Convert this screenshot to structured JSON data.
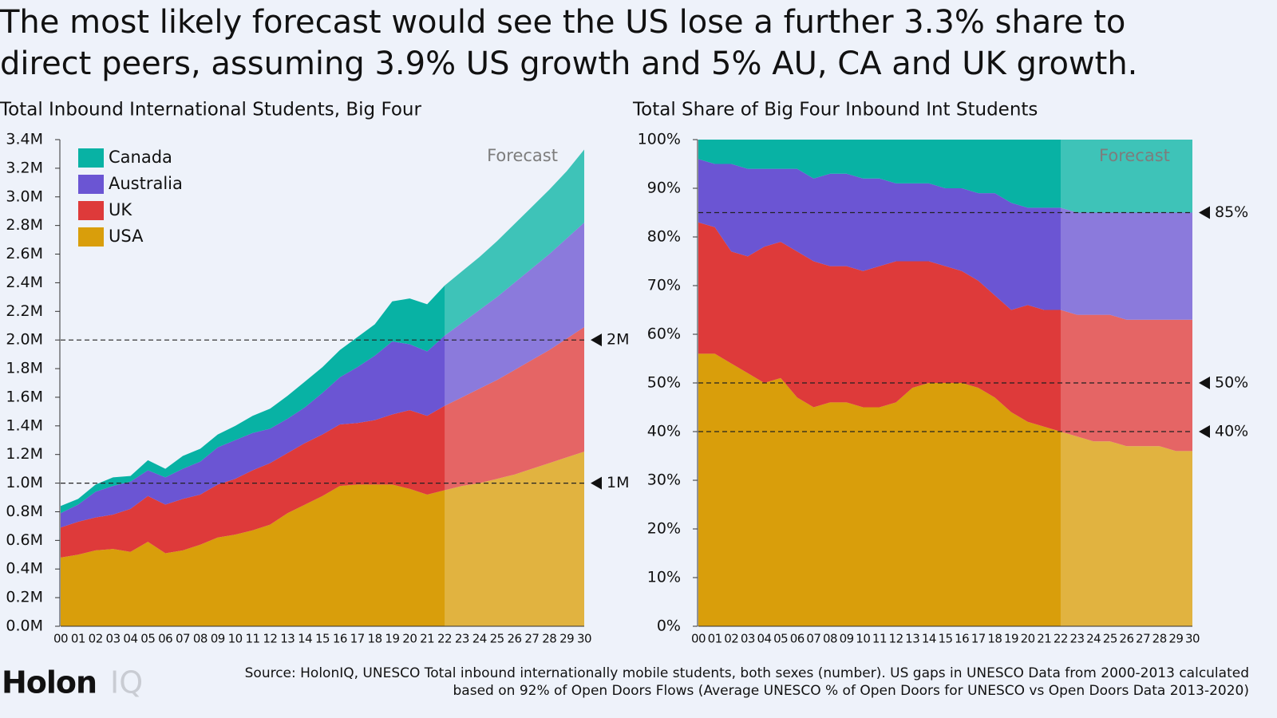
{
  "title": [
    "The most likely forecast would see the US lose a further 3.3% share to",
    "direct peers, assuming 3.9% US growth and 5% AU, CA and UK growth."
  ],
  "source": [
    "Source: HolonIQ, UNESCO Total inbound internationally mobile students, both sexes (number). US gaps in UNESCO Data from 2000-2013 calculated",
    "based on 92% of Open Doors Flows (Average UNESCO % of Open Doors for UNESCO vs Open Doors Data 2013-2020)"
  ],
  "logo": [
    "Holon",
    "IQ"
  ],
  "chart_data": [
    {
      "type": "stacked_area",
      "title": "Total Inbound International Students, Big Four",
      "categories": [
        "00",
        "01",
        "02",
        "03",
        "04",
        "05",
        "06",
        "07",
        "08",
        "09",
        "10",
        "11",
        "12",
        "13",
        "14",
        "15",
        "16",
        "17",
        "18",
        "19",
        "20",
        "21",
        "22",
        "23",
        "24",
        "25",
        "26",
        "27",
        "28",
        "29",
        "30"
      ],
      "series": [
        {
          "name": "USA",
          "color": "#d99e0b",
          "values": [
            0.48,
            0.5,
            0.53,
            0.54,
            0.52,
            0.59,
            0.51,
            0.53,
            0.57,
            0.62,
            0.64,
            0.67,
            0.71,
            0.79,
            0.85,
            0.91,
            0.98,
            0.99,
            0.99,
            0.99,
            0.96,
            0.92,
            0.95,
            0.98,
            1.0,
            1.03,
            1.06,
            1.1,
            1.14,
            1.18,
            1.22
          ]
        },
        {
          "name": "UK",
          "color": "#de3a3a",
          "values": [
            0.21,
            0.23,
            0.23,
            0.24,
            0.3,
            0.32,
            0.34,
            0.36,
            0.35,
            0.37,
            0.39,
            0.42,
            0.43,
            0.42,
            0.43,
            0.43,
            0.43,
            0.43,
            0.45,
            0.49,
            0.55,
            0.55,
            0.59,
            0.62,
            0.66,
            0.69,
            0.73,
            0.76,
            0.79,
            0.83,
            0.87
          ]
        },
        {
          "name": "Australia",
          "color": "#6b55d3",
          "values": [
            0.1,
            0.12,
            0.18,
            0.2,
            0.19,
            0.18,
            0.19,
            0.21,
            0.23,
            0.26,
            0.27,
            0.26,
            0.24,
            0.24,
            0.25,
            0.29,
            0.33,
            0.39,
            0.45,
            0.51,
            0.46,
            0.45,
            0.49,
            0.52,
            0.55,
            0.58,
            0.61,
            0.64,
            0.67,
            0.7,
            0.73
          ]
        },
        {
          "name": "Canada",
          "color": "#08b2a4",
          "values": [
            0.05,
            0.04,
            0.05,
            0.06,
            0.04,
            0.07,
            0.06,
            0.09,
            0.09,
            0.09,
            0.1,
            0.12,
            0.14,
            0.16,
            0.18,
            0.18,
            0.19,
            0.21,
            0.22,
            0.28,
            0.32,
            0.33,
            0.35,
            0.36,
            0.37,
            0.39,
            0.41,
            0.43,
            0.45,
            0.47,
            0.51
          ]
        }
      ],
      "ylim": [
        0,
        3.4
      ],
      "yticks": [
        {
          "value": 0,
          "label": "0.0M"
        },
        {
          "value": 0.2,
          "label": "0.2M"
        },
        {
          "value": 0.4,
          "label": "0.4M"
        },
        {
          "value": 0.6,
          "label": "0.6M"
        },
        {
          "value": 0.8,
          "label": "0.8M"
        },
        {
          "value": 1,
          "label": "1.0M"
        },
        {
          "value": 1.2,
          "label": "1.2M"
        },
        {
          "value": 1.4,
          "label": "1.4M"
        },
        {
          "value": 1.6,
          "label": "1.6M"
        },
        {
          "value": 1.8,
          "label": "1.8M"
        },
        {
          "value": 2,
          "label": "2.0M"
        },
        {
          "value": 2.2,
          "label": "2.2M"
        },
        {
          "value": 2.4,
          "label": "2.4M"
        },
        {
          "value": 2.6,
          "label": "2.6M"
        },
        {
          "value": 2.8,
          "label": "2.8M"
        },
        {
          "value": 3,
          "label": "3.0M"
        },
        {
          "value": 3.2,
          "label": "3.2M"
        },
        {
          "value": 3.4,
          "label": "3.4M"
        }
      ],
      "reference_lines": [
        {
          "value": 2,
          "label": "2M"
        },
        {
          "value": 1,
          "label": "1M"
        }
      ],
      "forecast_label": "Forecast",
      "forecast_from": "22",
      "legend": "upper left"
    },
    {
      "type": "stacked_area",
      "title": "Total Share of Big Four Inbound Int Students",
      "categories": [
        "00",
        "01",
        "02",
        "03",
        "04",
        "05",
        "06",
        "07",
        "08",
        "09",
        "10",
        "11",
        "12",
        "13",
        "14",
        "15",
        "16",
        "17",
        "18",
        "19",
        "20",
        "21",
        "22",
        "23",
        "24",
        "25",
        "26",
        "27",
        "28",
        "29",
        "30"
      ],
      "series": [
        {
          "name": "USA",
          "color": "#d99e0b",
          "values": [
            56,
            56,
            54,
            52,
            50,
            51,
            47,
            45,
            46,
            46,
            45,
            45,
            46,
            49,
            50,
            50,
            50,
            49,
            47,
            44,
            42,
            41,
            40,
            39,
            38,
            38,
            37,
            37,
            37,
            36,
            36
          ]
        },
        {
          "name": "UK",
          "color": "#de3a3a",
          "values": [
            27,
            26,
            23,
            24,
            28,
            28,
            30,
            30,
            28,
            28,
            28,
            29,
            29,
            26,
            25,
            24,
            23,
            22,
            21,
            21,
            24,
            24,
            25,
            25,
            26,
            26,
            26,
            26,
            26,
            27,
            27
          ]
        },
        {
          "name": "Australia",
          "color": "#6b55d3",
          "values": [
            13,
            13,
            18,
            18,
            16,
            15,
            17,
            17,
            19,
            19,
            19,
            18,
            16,
            16,
            16,
            16,
            17,
            18,
            21,
            22,
            20,
            21,
            21,
            21,
            21,
            21,
            22,
            22,
            22,
            22,
            22
          ]
        },
        {
          "name": "Canada",
          "color": "#08b2a4",
          "values": [
            4,
            5,
            5,
            6,
            6,
            6,
            6,
            8,
            7,
            7,
            8,
            8,
            9,
            9,
            9,
            10,
            10,
            11,
            11,
            13,
            14,
            14,
            14,
            15,
            15,
            15,
            15,
            15,
            15,
            15,
            15
          ]
        }
      ],
      "ylim": [
        0,
        100
      ],
      "yticks": [
        {
          "value": 0,
          "label": "0%"
        },
        {
          "value": 10,
          "label": "10%"
        },
        {
          "value": 20,
          "label": "20%"
        },
        {
          "value": 30,
          "label": "30%"
        },
        {
          "value": 40,
          "label": "40%"
        },
        {
          "value": 50,
          "label": "50%"
        },
        {
          "value": 60,
          "label": "60%"
        },
        {
          "value": 70,
          "label": "70%"
        },
        {
          "value": 80,
          "label": "80%"
        },
        {
          "value": 90,
          "label": "90%"
        },
        {
          "value": 100,
          "label": "100%"
        }
      ],
      "reference_lines": [
        {
          "value": 85,
          "label": "85%"
        },
        {
          "value": 50,
          "label": "50%"
        },
        {
          "value": 40,
          "label": "40%"
        }
      ],
      "forecast_label": "Forecast",
      "forecast_from": "22"
    }
  ]
}
